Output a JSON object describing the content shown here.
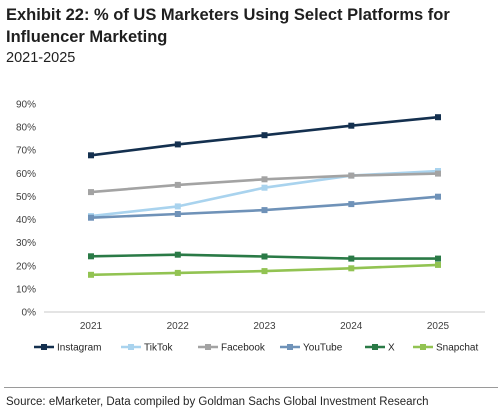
{
  "header": {
    "title": "Exhibit 22: % of US Marketers Using Select Platforms for Influencer Marketing",
    "subtitle": "2021-2025"
  },
  "footer": {
    "source": "Source: eMarketer, Data compiled by Goldman Sachs Global Investment Research"
  },
  "chart_data": {
    "type": "line",
    "title": "",
    "xlabel": "",
    "ylabel": "",
    "x": [
      "2021",
      "2022",
      "2023",
      "2024",
      "2025"
    ],
    "ylim": [
      0,
      90
    ],
    "yticks": [
      0,
      10,
      20,
      30,
      40,
      50,
      60,
      70,
      80,
      90
    ],
    "ytick_labels": [
      "0%",
      "10%",
      "20%",
      "30%",
      "40%",
      "50%",
      "60%",
      "70%",
      "80%",
      "90%"
    ],
    "grid": false,
    "legend_position": "bottom",
    "series": [
      {
        "name": "Instagram",
        "color": "#14304f",
        "values": [
          67.8,
          72.5,
          76.5,
          80.6,
          84.3
        ]
      },
      {
        "name": "TikTok",
        "color": "#a9d3ee",
        "values": [
          41.5,
          45.7,
          53.8,
          59.0,
          61.0
        ]
      },
      {
        "name": "Facebook",
        "color": "#a3a3a3",
        "values": [
          51.9,
          55.0,
          57.4,
          59.0,
          59.9
        ]
      },
      {
        "name": "YouTube",
        "color": "#6f92b8",
        "values": [
          40.8,
          42.4,
          44.1,
          46.7,
          49.9
        ]
      },
      {
        "name": "X",
        "color": "#2a7a46",
        "values": [
          24.1,
          24.8,
          24.0,
          23.1,
          23.1
        ]
      },
      {
        "name": "Snapchat",
        "color": "#92c352",
        "values": [
          16.1,
          16.9,
          17.7,
          18.9,
          20.4
        ]
      }
    ]
  }
}
